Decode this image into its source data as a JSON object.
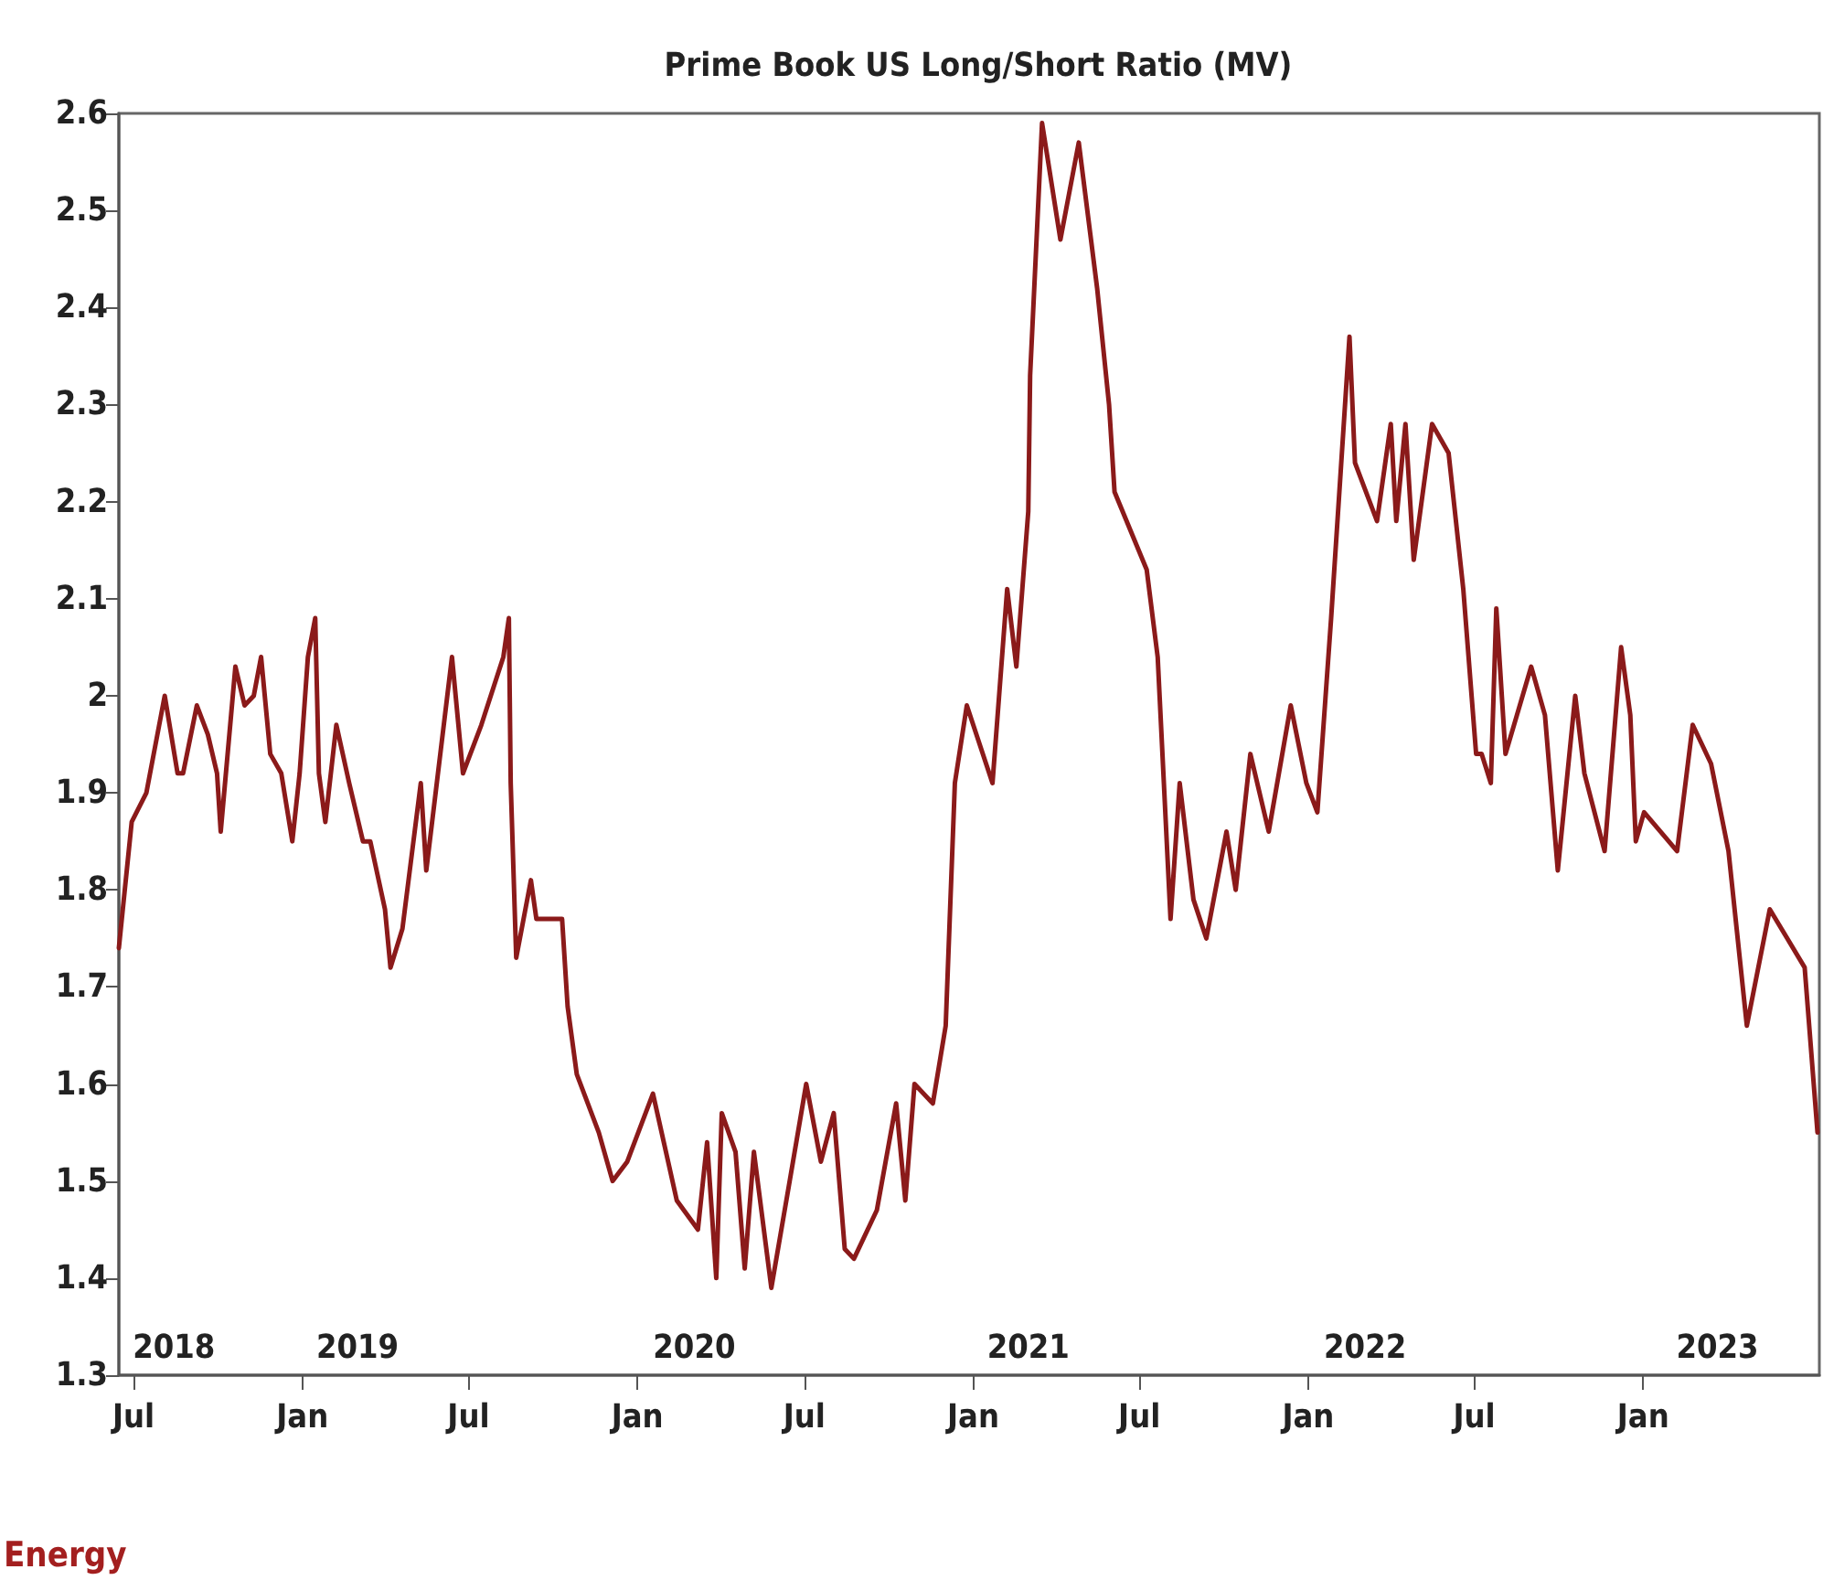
{
  "chart_data": {
    "type": "line",
    "title": "Prime Book US Long/Short Ratio (MV)",
    "annotations": [
      "Energy"
    ],
    "x": [
      "2018-06-15",
      "2018-06-29",
      "2018-07-15",
      "2018-07-31",
      "2018-08-04",
      "2018-08-18",
      "2018-08-24",
      "2018-09-08",
      "2018-09-20",
      "2018-09-30",
      "2018-10-04",
      "2018-10-20",
      "2018-10-30",
      "2018-11-09",
      "2018-11-17",
      "2018-11-27",
      "2018-12-09",
      "2018-12-21",
      "2018-12-29",
      "2019-01-07",
      "2019-01-15",
      "2019-01-19",
      "2019-01-26",
      "2019-02-07",
      "2019-02-21",
      "2019-03-08",
      "2019-03-16",
      "2019-04-01",
      "2019-04-07",
      "2019-04-20",
      "2019-05-10",
      "2019-05-16",
      "2019-06-13",
      "2019-06-25",
      "2019-07-15",
      "2019-08-08",
      "2019-08-14",
      "2019-08-16",
      "2019-08-22",
      "2019-09-07",
      "2019-09-13",
      "2019-10-11",
      "2019-10-17",
      "2019-10-27",
      "2019-11-20",
      "2019-12-05",
      "2019-12-21",
      "2020-01-18",
      "2020-02-13",
      "2020-03-07",
      "2020-03-17",
      "2020-03-27",
      "2020-04-02",
      "2020-04-17",
      "2020-04-27",
      "2020-05-07",
      "2020-05-26",
      "2020-06-15",
      "2020-07-03",
      "2020-07-19",
      "2020-08-02",
      "2020-08-14",
      "2020-08-24",
      "2020-09-18",
      "2020-10-09",
      "2020-10-19",
      "2020-10-29",
      "2020-11-18",
      "2020-12-02",
      "2020-12-12",
      "2020-12-25",
      "2021-01-22",
      "2021-02-07",
      "2021-02-17",
      "2021-03-02",
      "2021-03-04",
      "2021-03-17",
      "2021-04-06",
      "2021-04-26",
      "2021-05-16",
      "2021-05-29",
      "2021-06-04",
      "2021-07-09",
      "2021-07-21",
      "2021-08-04",
      "2021-08-14",
      "2021-08-29",
      "2021-09-12",
      "2021-10-04",
      "2021-10-14",
      "2021-10-30",
      "2021-11-19",
      "2021-12-13",
      "2021-12-30",
      "2022-01-11",
      "2022-01-26",
      "2022-02-15",
      "2022-02-21",
      "2022-03-17",
      "2022-04-01",
      "2022-04-07",
      "2022-04-17",
      "2022-04-26",
      "2022-05-16",
      "2022-06-03",
      "2022-06-19",
      "2022-07-03",
      "2022-07-09",
      "2022-07-19",
      "2022-07-25",
      "2022-08-04",
      "2022-09-01",
      "2022-09-16",
      "2022-09-30",
      "2022-10-19",
      "2022-10-29",
      "2022-11-20",
      "2022-12-08",
      "2022-12-18",
      "2022-12-24",
      "2023-01-02",
      "2023-02-07",
      "2023-02-24",
      "2023-03-16",
      "2023-04-04",
      "2023-04-24",
      "2023-05-19",
      "2023-06-07",
      "2023-06-26",
      "2023-07-10"
    ],
    "series": [
      {
        "color": "#8b1a1a",
        "values": [
          1.74,
          1.87,
          1.9,
          1.98,
          2.0,
          1.92,
          1.92,
          1.99,
          1.96,
          1.92,
          1.86,
          2.03,
          1.99,
          2.0,
          2.04,
          1.94,
          1.92,
          1.85,
          1.92,
          2.04,
          2.08,
          1.92,
          1.87,
          1.97,
          1.91,
          1.85,
          1.85,
          1.78,
          1.72,
          1.76,
          1.91,
          1.82,
          2.04,
          1.92,
          1.97,
          2.04,
          2.08,
          1.91,
          1.73,
          1.81,
          1.77,
          1.77,
          1.68,
          1.61,
          1.55,
          1.5,
          1.52,
          1.59,
          1.48,
          1.45,
          1.54,
          1.4,
          1.57,
          1.53,
          1.41,
          1.53,
          1.39,
          1.5,
          1.6,
          1.52,
          1.57,
          1.43,
          1.42,
          1.47,
          1.58,
          1.48,
          1.6,
          1.58,
          1.66,
          1.91,
          1.99,
          1.91,
          2.11,
          2.03,
          2.19,
          2.33,
          2.59,
          2.47,
          2.57,
          2.42,
          2.3,
          2.21,
          2.13,
          2.04,
          1.77,
          1.91,
          1.79,
          1.75,
          1.86,
          1.8,
          1.94,
          1.86,
          1.99,
          1.91,
          1.88,
          2.08,
          2.37,
          2.24,
          2.18,
          2.28,
          2.18,
          2.28,
          2.14,
          2.28,
          2.25,
          2.11,
          1.94,
          1.94,
          1.91,
          2.09,
          1.94,
          2.03,
          1.98,
          1.82,
          2.0,
          1.92,
          1.84,
          2.05,
          1.98,
          1.85,
          1.88,
          1.84,
          1.97,
          1.93,
          1.84,
          1.66,
          1.78,
          1.75,
          1.72,
          1.55
        ]
      }
    ],
    "xlim": [
      "2018-06-15",
      "2023-07-12"
    ],
    "xticks": [
      {
        "value": "2018-07-01",
        "label": "Jul"
      },
      {
        "value": "2019-01-01",
        "label": "Jan"
      },
      {
        "value": "2019-07-01",
        "label": "Jul"
      },
      {
        "value": "2020-01-01",
        "label": "Jan"
      },
      {
        "value": "2020-07-01",
        "label": "Jul"
      },
      {
        "value": "2021-01-01",
        "label": "Jan"
      },
      {
        "value": "2021-07-01",
        "label": "Jul"
      },
      {
        "value": "2022-01-01",
        "label": "Jan"
      },
      {
        "value": "2022-07-01",
        "label": "Jul"
      },
      {
        "value": "2023-01-01",
        "label": "Jan"
      }
    ],
    "x2lim": [
      "2018-06-15",
      "2023-07-12"
    ],
    "x2ticks": [
      {
        "value": "2018-08-14",
        "label": "2018"
      },
      {
        "value": "2019-03-02",
        "label": "2019"
      },
      {
        "value": "2020-03-03",
        "label": "2020"
      },
      {
        "value": "2021-03-02",
        "label": "2021"
      },
      {
        "value": "2022-03-04",
        "label": "2022"
      },
      {
        "value": "2023-03-23",
        "label": "2023"
      }
    ],
    "ylim": [
      1.3,
      2.6
    ],
    "yticks": [
      1.3,
      1.4,
      1.5,
      1.6,
      1.7,
      1.8,
      1.9,
      2,
      2.1,
      2.2,
      2.3,
      2.4,
      2.5,
      2.6
    ],
    "marker": "none",
    "line_style": "solid",
    "grid": false
  }
}
